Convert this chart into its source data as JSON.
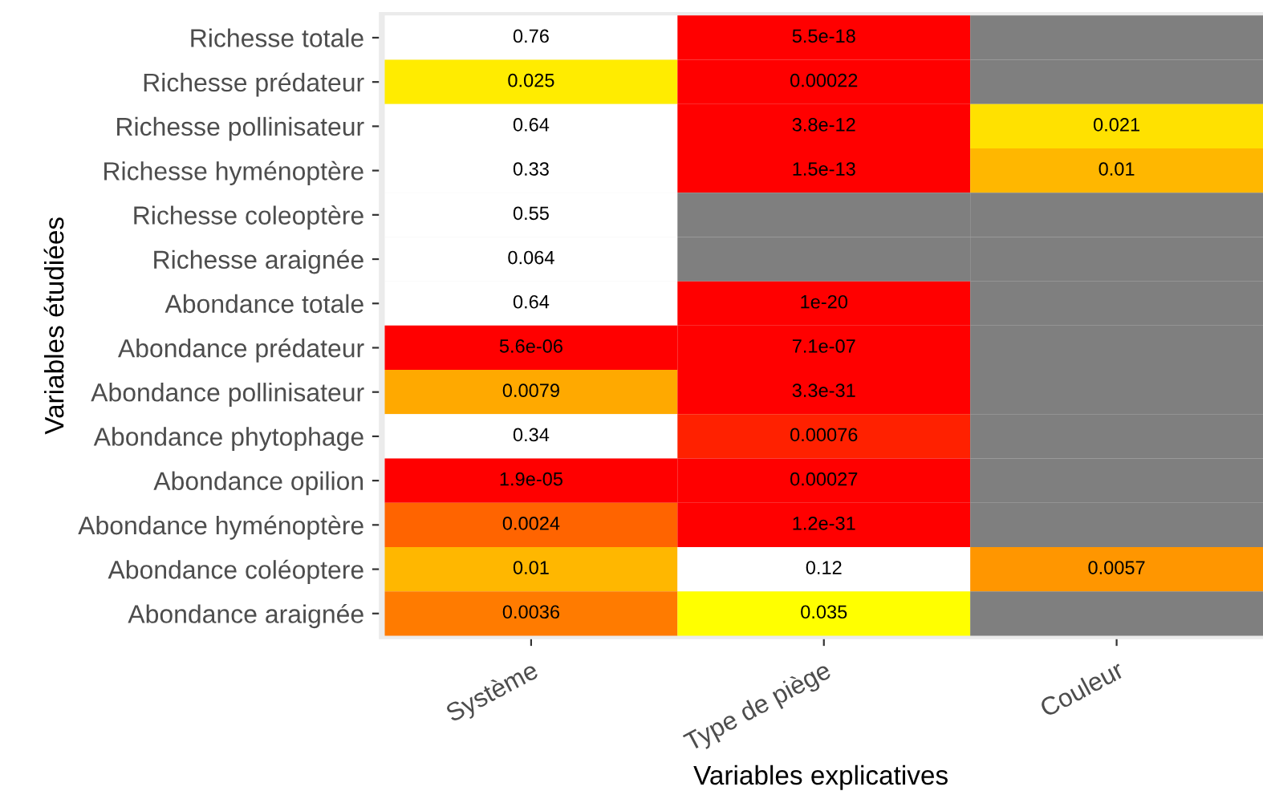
{
  "chart_data": {
    "type": "heatmap",
    "xlabel": "Variables explicatives",
    "ylabel": "Variables étudiées",
    "categories": [
      "Système",
      "Type de piège",
      "Couleur"
    ],
    "y_categories": [
      "Richesse totale",
      "Richesse prédateur",
      "Richesse pollinisateur",
      "Richesse hyménoptère",
      "Richesse coleoptère",
      "Richesse araignée",
      "Abondance totale",
      "Abondance prédateur",
      "Abondance pollinisateur",
      "Abondance phytophage",
      "Abondance opilion",
      "Abondance hyménoptère",
      "Abondance coléoptere",
      "Abondance araignée"
    ],
    "cells": [
      [
        0.76,
        5.5e-18,
        null
      ],
      [
        0.025,
        0.00022,
        null
      ],
      [
        0.64,
        3.8e-12,
        0.021
      ],
      [
        0.33,
        1.5e-13,
        0.01
      ],
      [
        0.55,
        null,
        null
      ],
      [
        0.064,
        null,
        null
      ],
      [
        0.64,
        1e-20,
        null
      ],
      [
        5.6e-06,
        7.1e-07,
        null
      ],
      [
        0.0079,
        3.3e-31,
        null
      ],
      [
        0.34,
        0.00076,
        null
      ],
      [
        1.9e-05,
        0.00027,
        null
      ],
      [
        0.0024,
        1.2e-31,
        null
      ],
      [
        0.01,
        0.12,
        0.0057
      ],
      [
        0.0036,
        0.035,
        null
      ]
    ],
    "cell_labels": [
      [
        "0.76",
        "5.5e-18",
        null
      ],
      [
        "0.025",
        "0.00022",
        null
      ],
      [
        "0.64",
        "3.8e-12",
        "0.021"
      ],
      [
        "0.33",
        "1.5e-13",
        "0.01"
      ],
      [
        "0.55",
        null,
        null
      ],
      [
        "0.064",
        null,
        null
      ],
      [
        "0.64",
        "1e-20",
        null
      ],
      [
        "5.6e-06",
        "7.1e-07",
        null
      ],
      [
        "0.0079",
        "3.3e-31",
        null
      ],
      [
        "0.34",
        "0.00076",
        null
      ],
      [
        "1.9e-05",
        "0.00027",
        null
      ],
      [
        "0.0024",
        "1.2e-31",
        null
      ],
      [
        "0.01",
        "0.12",
        "0.0057"
      ],
      [
        "0.0036",
        "0.035",
        null
      ]
    ]
  }
}
